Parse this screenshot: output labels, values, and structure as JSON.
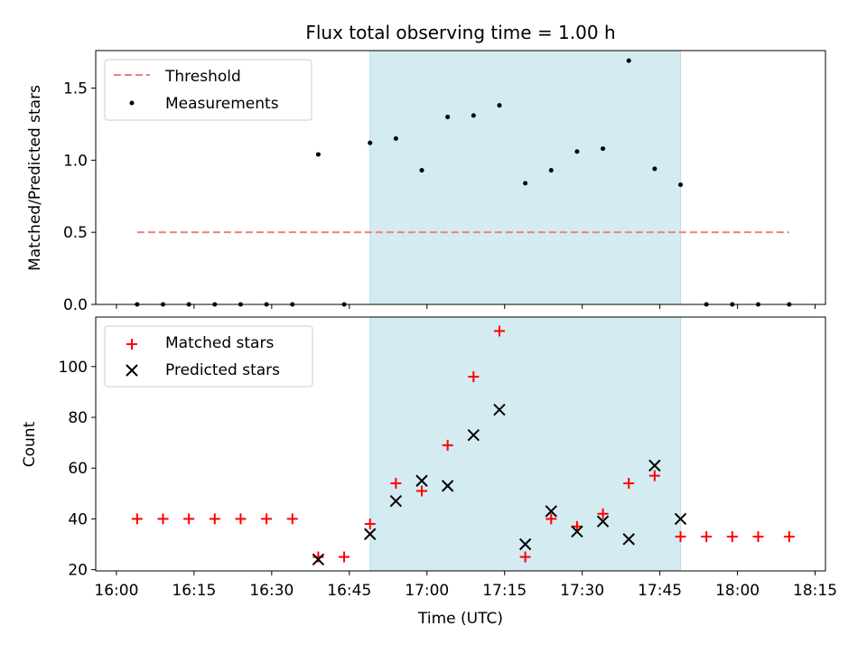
{
  "chart_data": {
    "title": "Flux total observing time = 1.00 h",
    "xlabel": "Time (UTC)",
    "x_ticks": [
      "16:00",
      "16:15",
      "16:30",
      "16:45",
      "17:00",
      "17:15",
      "17:30",
      "17:45",
      "18:00",
      "18:15"
    ],
    "x_tick_minutes": [
      960,
      975,
      990,
      1005,
      1020,
      1035,
      1050,
      1065,
      1080,
      1095
    ],
    "x_range_minutes": [
      956,
      1097
    ],
    "highlight_span": {
      "start": "16:49",
      "end": "17:49",
      "start_min": 1009,
      "end_min": 1069,
      "color": "#d4ebf1"
    },
    "grid": false,
    "charts": [
      {
        "type": "scatter",
        "ylabel": "Matched/Predicted stars",
        "ylim": [
          0,
          1.76
        ],
        "y_ticks": [
          0.0,
          0.5,
          1.0,
          1.5
        ],
        "y_tick_labels": [
          "0.0",
          "0.5",
          "1.0",
          "1.5"
        ],
        "legend_position": "top-left",
        "threshold": {
          "name": "Threshold",
          "value": 0.5,
          "x_start_min": 964,
          "x_end_min": 1090,
          "color": "#f08080"
        },
        "series": [
          {
            "name": "Measurements",
            "color": "#000000",
            "marker": "dot",
            "x_min": [
              964,
              969,
              974,
              979,
              984,
              989,
              994,
              999,
              1004,
              1009,
              1014,
              1019,
              1024,
              1029,
              1034,
              1039,
              1044,
              1049,
              1054,
              1059,
              1064,
              1069,
              1074,
              1079,
              1084,
              1090
            ],
            "values": [
              0,
              0,
              0,
              0,
              0,
              0,
              0,
              1.04,
              0,
              1.12,
              1.15,
              0.93,
              1.3,
              1.31,
              1.38,
              0.84,
              0.93,
              1.06,
              1.08,
              1.69,
              0.94,
              0.83,
              0,
              0,
              0,
              0
            ]
          }
        ]
      },
      {
        "type": "scatter",
        "ylabel": "Count",
        "ylim": [
          19.5,
          119.5
        ],
        "y_ticks": [
          20,
          40,
          60,
          80,
          100
        ],
        "y_tick_labels": [
          "20",
          "40",
          "60",
          "80",
          "100"
        ],
        "legend_position": "top-left",
        "series": [
          {
            "name": "Matched stars",
            "color": "#ff0000",
            "marker": "plus",
            "x_min": [
              964,
              969,
              974,
              979,
              984,
              989,
              994,
              999,
              1004,
              1009,
              1014,
              1019,
              1024,
              1029,
              1034,
              1039,
              1044,
              1049,
              1054,
              1059,
              1064,
              1069,
              1074,
              1079,
              1084,
              1090
            ],
            "values": [
              40,
              40,
              40,
              40,
              40,
              40,
              40,
              25,
              25,
              38,
              54,
              51,
              69,
              96,
              114,
              25,
              40,
              37,
              42,
              54,
              57,
              33,
              33,
              33,
              33,
              33
            ]
          },
          {
            "name": "Predicted stars",
            "color": "#000000",
            "marker": "x",
            "x_min": [
              999,
              1009,
              1014,
              1019,
              1024,
              1029,
              1034,
              1039,
              1044,
              1049,
              1054,
              1059,
              1064,
              1069
            ],
            "values": [
              24,
              34,
              47,
              55,
              53,
              73,
              83,
              30,
              43,
              35,
              39,
              32,
              61,
              40
            ]
          }
        ]
      }
    ]
  }
}
